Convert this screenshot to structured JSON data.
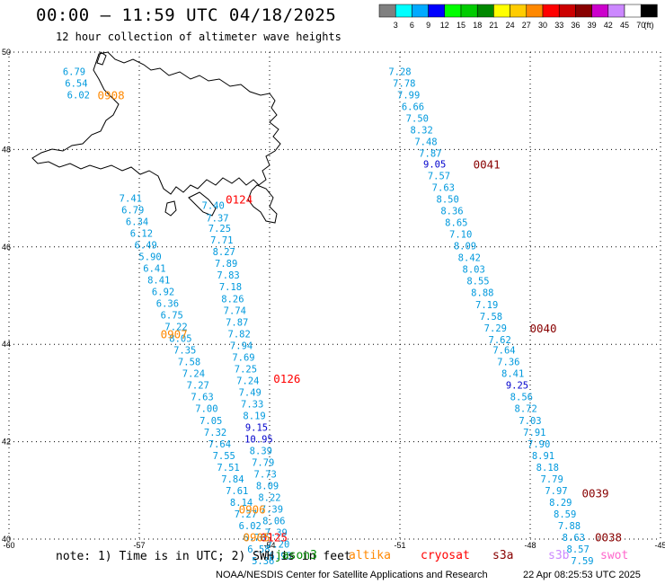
{
  "header": {
    "title": "00:00 – 11:59 UTC 04/18/2025",
    "subtitle": "12 hour collection of altimeter wave heights"
  },
  "legend": {
    "unit": "(ft)",
    "colors": [
      "#808080",
      "#00ffff",
      "#00aaff",
      "#0000ff",
      "#00ff00",
      "#00cc00",
      "#008800",
      "#ffff00",
      "#ffcc00",
      "#ff8800",
      "#ff0000",
      "#cc0000",
      "#880000",
      "#cc00cc",
      "#cc88ff",
      "#ffffff",
      "#000000"
    ],
    "labels": [
      "3",
      "6",
      "9",
      "12",
      "15",
      "18",
      "21",
      "24",
      "27",
      "30",
      "33",
      "36",
      "39",
      "42",
      "45",
      "70"
    ]
  },
  "axes": {
    "lon_ticks": [
      "-60",
      "-57",
      "-54",
      "-51",
      "-48",
      "-45"
    ],
    "lat_ticks": [
      "40",
      "42",
      "44",
      "46",
      "48",
      "50"
    ]
  },
  "tracks": [
    {
      "values": [
        "6.79",
        "6.54",
        "6.02"
      ],
      "lon": [
        -58.5,
        -58.45,
        -58.4
      ],
      "lat": [
        49.6,
        49.36,
        49.12
      ]
    },
    {
      "values": [
        "7.28",
        "7.78",
        "7.99",
        "6.66",
        "7.50",
        "8.32",
        "7.48",
        "7.87",
        "9.05",
        "7.57",
        "7.63",
        "8.50",
        "8.36",
        "8.65",
        "7.10",
        "8.09",
        "8.42",
        "8.03",
        "8.55",
        "8.88",
        "7.19",
        "7.58",
        "7.29",
        "7.62",
        "7.64",
        "7.36",
        "8.41",
        "9.25",
        "8.56",
        "8.72",
        "7.03",
        "7.91",
        "7.90",
        "8.91",
        "8.18",
        "7.79",
        "7.97",
        "8.29",
        "8.59",
        "7.88",
        "8.63",
        "8.57",
        "7.59"
      ],
      "lon": [
        -51.0,
        -50.9,
        -50.8,
        -50.7,
        -50.6,
        -50.5,
        -50.4,
        -50.3,
        -50.2,
        -50.1,
        -50.0,
        -49.9,
        -49.8,
        -49.7,
        -49.6,
        -49.5,
        -49.4,
        -49.3,
        -49.2,
        -49.1,
        -49.0,
        -48.9,
        -48.8,
        -48.7,
        -48.6,
        -48.5,
        -48.4,
        -48.3,
        -48.2,
        -48.1,
        -48.0,
        -47.9,
        -47.8,
        -47.7,
        -47.6,
        -47.5,
        -47.4,
        -47.3,
        -47.2,
        -47.1,
        -47.0,
        -46.9,
        -46.8
      ],
      "lat": [
        49.6,
        49.36,
        49.12,
        48.88,
        48.64,
        48.4,
        48.16,
        47.92,
        47.7,
        47.46,
        47.22,
        46.98,
        46.74,
        46.5,
        46.26,
        46.02,
        45.78,
        45.54,
        45.3,
        45.06,
        44.82,
        44.58,
        44.34,
        44.1,
        43.88,
        43.64,
        43.4,
        43.16,
        42.92,
        42.68,
        42.44,
        42.2,
        41.96,
        41.72,
        41.48,
        41.24,
        41.0,
        40.76,
        40.52,
        40.28,
        40.04,
        39.8,
        39.56
      ]
    },
    {
      "values": [
        "7.41",
        "6.79",
        "6.34",
        "6.12",
        "6.49",
        "5.90",
        "6.41",
        "8.41",
        "6.92",
        "6.36",
        "6.75",
        "7.22",
        "8.05",
        "7.35",
        "7.58",
        "7.24",
        "7.27",
        "7.63",
        "7.00",
        "7.05",
        "7.32",
        "7.64",
        "7.55",
        "7.51",
        "7.84",
        "7.61",
        "8.14",
        "7.27",
        "6.02",
        "6.70",
        "6.58",
        "5.36"
      ],
      "lon": [
        -57.2,
        -57.15,
        -57.05,
        -56.95,
        -56.85,
        -56.75,
        -56.65,
        -56.55,
        -56.45,
        -56.35,
        -56.25,
        -56.15,
        -56.05,
        -55.95,
        -55.85,
        -55.75,
        -55.65,
        -55.55,
        -55.45,
        -55.35,
        -55.25,
        -55.15,
        -55.05,
        -54.95,
        -54.85,
        -54.75,
        -54.65,
        -54.55,
        -54.45,
        -54.35,
        -54.25,
        -54.15
      ],
      "lat": [
        47.0,
        46.76,
        46.52,
        46.28,
        46.04,
        45.8,
        45.56,
        45.32,
        45.08,
        44.84,
        44.6,
        44.36,
        44.12,
        43.88,
        43.64,
        43.4,
        43.16,
        42.92,
        42.68,
        42.44,
        42.2,
        41.96,
        41.72,
        41.48,
        41.24,
        41.0,
        40.76,
        40.52,
        40.28,
        40.04,
        39.8,
        39.56
      ]
    },
    {
      "values": [
        "7.40",
        "7.37",
        "7.25",
        "7.71",
        "8.27",
        "7.89",
        "7.83",
        "7.18",
        "8.26",
        "7.74",
        "7.87",
        "7.82",
        "7.94",
        "7.69",
        "7.25",
        "7.24",
        "7.49",
        "7.33",
        "8.19",
        "9.15",
        "10.95",
        "8.39",
        "7.79",
        "7.73",
        "8.09",
        "8.22",
        "7.39",
        "8.06",
        "7.39",
        "7.20",
        "6.95"
      ],
      "lon": [
        -55.3,
        -55.2,
        -55.15,
        -55.1,
        -55.05,
        -55.0,
        -54.95,
        -54.9,
        -54.85,
        -54.8,
        -54.75,
        -54.7,
        -54.65,
        -54.6,
        -54.55,
        -54.5,
        -54.45,
        -54.4,
        -54.35,
        -54.3,
        -54.25,
        -54.2,
        -54.15,
        -54.1,
        -54.05,
        -54.0,
        -53.95,
        -53.9,
        -53.85,
        -53.8,
        -53.75
      ],
      "lat": [
        46.85,
        46.6,
        46.38,
        46.14,
        45.9,
        45.66,
        45.42,
        45.18,
        44.94,
        44.7,
        44.46,
        44.22,
        43.98,
        43.74,
        43.5,
        43.26,
        43.02,
        42.78,
        42.54,
        42.3,
        42.06,
        41.82,
        41.58,
        41.34,
        41.1,
        40.86,
        40.62,
        40.38,
        40.14,
        39.9,
        39.66
      ]
    }
  ],
  "time_labels": [
    {
      "text": "0908",
      "color": "#ff8800",
      "lon": -57.65,
      "lat": 49.12
    },
    {
      "text": "0041",
      "color": "#880000",
      "lon": -49.0,
      "lat": 47.7
    },
    {
      "text": "0124",
      "color": "#ff0000",
      "lon": -54.7,
      "lat": 46.98
    },
    {
      "text": "0040",
      "color": "#880000",
      "lon": -47.7,
      "lat": 44.34
    },
    {
      "text": "0907",
      "color": "#ff8800",
      "lon": -56.2,
      "lat": 44.22
    },
    {
      "text": "0126",
      "color": "#ff0000",
      "lon": -53.6,
      "lat": 43.3
    },
    {
      "text": "0906",
      "color": "#ff8800",
      "lon": -54.4,
      "lat": 40.62
    },
    {
      "text": "0039",
      "color": "#880000",
      "lon": -46.5,
      "lat": 40.95
    },
    {
      "text": "0038",
      "color": "#880000",
      "lon": -46.2,
      "lat": 40.05
    },
    {
      "text": "0125",
      "color": "#ff0000",
      "lon": -53.9,
      "lat": 40.05
    },
    {
      "text": "0905",
      "color": "#ff8800",
      "lon": -54.3,
      "lat": 40.05
    }
  ],
  "footer": {
    "note": "note: 1) Time is in UTC; 2) SWH is in feet",
    "satellites": [
      {
        "name": "jason3",
        "color": "#008800"
      },
      {
        "name": "altika",
        "color": "#ff8800"
      },
      {
        "name": "cryosat",
        "color": "#ff0000"
      },
      {
        "name": "s3a",
        "color": "#880000"
      },
      {
        "name": "s3b",
        "color": "#cc88ff"
      },
      {
        "name": "swot",
        "color": "#ff66cc"
      }
    ],
    "credit": "NOAA/NESDIS Center for Satellite Applications and Research",
    "generated": "22 Apr 08:25:53 UTC 2025"
  }
}
